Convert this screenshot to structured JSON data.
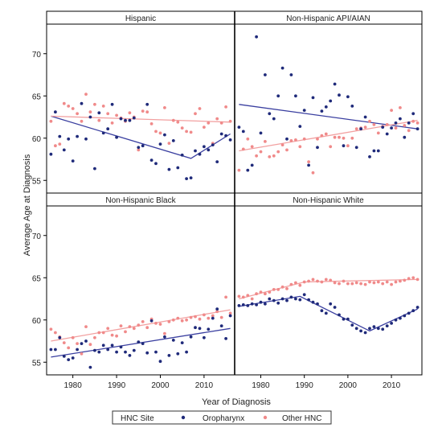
{
  "chart_data": {
    "type": "scatter",
    "xlabel": "Year of Diagnosis",
    "ylabel": "Average Age at Diagnosis",
    "xlim": [
      1974,
      2017
    ],
    "ylim": [
      53.5,
      73.5
    ],
    "xticks": [
      1980,
      1990,
      2000,
      2010
    ],
    "yticks": [
      55,
      60,
      65,
      70
    ],
    "legend": {
      "title": "HNC Site",
      "placement": "bottom",
      "entries": [
        {
          "name": "Oropharynx",
          "color": "#1f2a7a"
        },
        {
          "name": "Other HNC",
          "color": "#f08a8a"
        }
      ]
    },
    "colors": {
      "oropharynx": "#1f2a7a",
      "other": "#f08a8a",
      "oro_line": "#3a3fa0",
      "other_line": "#f2a0a0"
    },
    "panels": [
      {
        "title": "Hispanic",
        "series": [
          {
            "name": "Oropharynx",
            "x": [
              1975,
              1976,
              1977,
              1978,
              1979,
              1980,
              1981,
              1982,
              1983,
              1984,
              1985,
              1986,
              1987,
              1988,
              1989,
              1990,
              1991,
              1992,
              1993,
              1994,
              1995,
              1996,
              1997,
              1998,
              1999,
              2000,
              2001,
              2002,
              2003,
              2004,
              2005,
              2006,
              2007,
              2008,
              2009,
              2010,
              2011,
              2012,
              2013,
              2014,
              2015,
              2016
            ],
            "y": [
              58.1,
              63.1,
              60.2,
              58.6,
              59.9,
              57.3,
              60.2,
              64.1,
              59.9,
              62.5,
              56.4,
              63.0,
              60.6,
              61.1,
              64.0,
              60.1,
              62.3,
              62.1,
              62.1,
              62.4,
              58.9,
              59.1,
              64.0,
              57.4,
              57.0,
              59.3,
              60.4,
              56.3,
              59.7,
              56.5,
              58.0,
              55.2,
              55.3,
              58.5,
              58.1,
              59.0,
              58.6,
              59.2,
              57.2,
              60.5,
              60.3,
              59.8
            ]
          },
          {
            "name": "Other HNC",
            "x": [
              1975,
              1976,
              1977,
              1978,
              1979,
              1980,
              1981,
              1982,
              1983,
              1984,
              1985,
              1986,
              1987,
              1988,
              1989,
              1990,
              1991,
              1992,
              1993,
              1994,
              1995,
              1996,
              1997,
              1998,
              1999,
              2000,
              2001,
              2002,
              2003,
              2004,
              2005,
              2006,
              2007,
              2008,
              2009,
              2010,
              2011,
              2012,
              2013,
              2014,
              2015,
              2016
            ],
            "y": [
              62.0,
              59.1,
              59.3,
              64.1,
              63.8,
              63.5,
              62.9,
              62.0,
              65.2,
              63.1,
              64.0,
              62.1,
              63.8,
              62.9,
              61.8,
              62.7,
              62.4,
              62.0,
              63.0,
              62.5,
              58.6,
              63.2,
              63.1,
              61.7,
              60.8,
              60.6,
              63.6,
              59.4,
              62.1,
              61.9,
              61.2,
              60.8,
              60.7,
              62.9,
              63.5,
              61.3,
              61.8,
              59.4,
              62.3,
              61.8,
              63.7,
              62.0
            ]
          }
        ],
        "fits": [
          {
            "name": "Oropharynx",
            "x": [
              1975,
              2007,
              2016
            ],
            "y": [
              62.6,
              57.6,
              60.5
            ]
          },
          {
            "name": "Other HNC",
            "x": [
              1975,
              2016
            ],
            "y": [
              62.6,
              61.9
            ]
          }
        ]
      },
      {
        "title": "Non-Hispanic API/AIAN",
        "series": [
          {
            "name": "Oropharynx",
            "x": [
              1975,
              1976,
              1977,
              1978,
              1979,
              1980,
              1981,
              1982,
              1983,
              1984,
              1985,
              1986,
              1987,
              1988,
              1989,
              1990,
              1991,
              1992,
              1993,
              1994,
              1995,
              1996,
              1997,
              1998,
              1999,
              2000,
              2001,
              2002,
              2003,
              2004,
              2005,
              2006,
              2007,
              2008,
              2009,
              2010,
              2011,
              2012,
              2013,
              2014,
              2015,
              2016
            ],
            "y": [
              61.3,
              60.8,
              56.2,
              56.8,
              72.0,
              60.6,
              67.5,
              62.9,
              62.3,
              65.0,
              68.3,
              59.9,
              67.5,
              65.0,
              61.4,
              63.3,
              56.8,
              64.8,
              58.9,
              63.2,
              63.7,
              64.4,
              66.4,
              65.1,
              59.1,
              64.9,
              63.8,
              58.9,
              61.1,
              62.5,
              57.8,
              58.5,
              58.5,
              61.3,
              60.5,
              61.2,
              61.8,
              62.3,
              60.1,
              61.8,
              62.9,
              61.1
            ]
          },
          {
            "name": "Other HNC",
            "x": [
              1975,
              1976,
              1977,
              1978,
              1979,
              1980,
              1981,
              1982,
              1983,
              1984,
              1985,
              1986,
              1987,
              1988,
              1989,
              1990,
              1991,
              1992,
              1993,
              1994,
              1995,
              1996,
              1997,
              1998,
              1999,
              2000,
              2001,
              2002,
              2003,
              2004,
              2005,
              2006,
              2007,
              2008,
              2009,
              2010,
              2011,
              2012,
              2013,
              2014,
              2015,
              2016
            ],
            "y": [
              56.2,
              58.7,
              59.9,
              59.0,
              57.9,
              58.4,
              59.6,
              57.8,
              57.9,
              58.4,
              59.2,
              58.6,
              59.7,
              59.8,
              59.0,
              59.9,
              57.2,
              55.9,
              59.9,
              60.3,
              60.5,
              59.0,
              60.1,
              60.1,
              60.0,
              59.1,
              60.0,
              61.1,
              61.2,
              61.3,
              62.0,
              61.6,
              60.6,
              61.4,
              61.6,
              63.3,
              61.2,
              63.6,
              61.5,
              60.9,
              62.0,
              61.8
            ]
          }
        ],
        "fits": [
          {
            "name": "Oropharynx",
            "x": [
              1975,
              2016
            ],
            "y": [
              64.0,
              61.1
            ]
          },
          {
            "name": "Other HNC",
            "x": [
              1975,
              2016
            ],
            "y": [
              58.5,
              62.1
            ]
          }
        ]
      },
      {
        "title": "Non-Hispanic Black",
        "series": [
          {
            "name": "Oropharynx",
            "x": [
              1975,
              1976,
              1977,
              1978,
              1979,
              1980,
              1981,
              1982,
              1983,
              1984,
              1985,
              1986,
              1987,
              1988,
              1989,
              1990,
              1991,
              1992,
              1993,
              1994,
              1995,
              1996,
              1997,
              1998,
              1999,
              2000,
              2001,
              2002,
              2003,
              2004,
              2005,
              2006,
              2007,
              2008,
              2009,
              2010,
              2011,
              2012,
              2013,
              2014,
              2015,
              2016
            ],
            "y": [
              56.5,
              56.5,
              57.9,
              55.7,
              55.3,
              55.5,
              56.5,
              57.2,
              57.5,
              54.4,
              56.4,
              56.2,
              57.0,
              56.5,
              57.0,
              56.2,
              56.8,
              56.2,
              55.8,
              56.4,
              57.4,
              57.2,
              56.1,
              59.9,
              56.2,
              55.1,
              58.0,
              55.8,
              57.6,
              56.0,
              57.3,
              56.2,
              58.0,
              59.1,
              59.0,
              57.9,
              58.9,
              60.2,
              61.3,
              59.3,
              57.8,
              60.5
            ]
          },
          {
            "name": "Other HNC",
            "x": [
              1975,
              1976,
              1977,
              1978,
              1979,
              1980,
              1981,
              1982,
              1983,
              1984,
              1985,
              1986,
              1987,
              1988,
              1989,
              1990,
              1991,
              1992,
              1993,
              1994,
              1995,
              1996,
              1997,
              1998,
              1999,
              2000,
              2001,
              2002,
              2003,
              2004,
              2005,
              2006,
              2007,
              2008,
              2009,
              2010,
              2011,
              2012,
              2013,
              2014,
              2015,
              2016
            ],
            "y": [
              58.9,
              58.5,
              58.0,
              57.3,
              56.7,
              57.9,
              57.2,
              56.0,
              59.2,
              57.1,
              57.9,
              58.5,
              58.5,
              59.0,
              58.2,
              58.1,
              59.3,
              58.6,
              59.2,
              59.0,
              59.4,
              59.8,
              59.1,
              60.1,
              59.6,
              59.5,
              58.4,
              59.8,
              60.0,
              60.2,
              59.9,
              60.0,
              60.3,
              60.4,
              60.1,
              60.6,
              60.2,
              60.5,
              61.0,
              60.3,
              62.7,
              60.8
            ]
          }
        ],
        "fits": [
          {
            "name": "Oropharynx",
            "x": [
              1975,
              2016
            ],
            "y": [
              55.6,
              59.0
            ]
          },
          {
            "name": "Other HNC",
            "x": [
              1975,
              2016
            ],
            "y": [
              57.5,
              61.2
            ]
          }
        ]
      },
      {
        "title": "Non-Hispanic White",
        "series": [
          {
            "name": "Oropharynx",
            "x": [
              1975,
              1976,
              1977,
              1978,
              1979,
              1980,
              1981,
              1982,
              1983,
              1984,
              1985,
              1986,
              1987,
              1988,
              1989,
              1990,
              1991,
              1992,
              1993,
              1994,
              1995,
              1996,
              1997,
              1998,
              1999,
              2000,
              2001,
              2002,
              2003,
              2004,
              2005,
              2006,
              2007,
              2008,
              2009,
              2010,
              2011,
              2012,
              2013,
              2014,
              2015,
              2016
            ],
            "y": [
              61.7,
              61.8,
              61.7,
              61.9,
              61.8,
              62.1,
              61.9,
              62.5,
              62.3,
              62.0,
              62.5,
              62.3,
              62.7,
              62.5,
              62.4,
              63.0,
              62.4,
              62.1,
              61.9,
              61.1,
              60.8,
              61.9,
              61.5,
              60.6,
              60.1,
              60.1,
              59.4,
              59.0,
              58.7,
              58.5,
              59.0,
              59.2,
              59.0,
              58.9,
              59.3,
              59.6,
              60.0,
              60.2,
              60.5,
              60.8,
              61.1,
              61.5
            ]
          },
          {
            "name": "Other HNC",
            "x": [
              1975,
              1976,
              1977,
              1978,
              1979,
              1980,
              1981,
              1982,
              1983,
              1984,
              1985,
              1986,
              1987,
              1988,
              1989,
              1990,
              1991,
              1992,
              1993,
              1994,
              1995,
              1996,
              1997,
              1998,
              1999,
              2000,
              2001,
              2002,
              2003,
              2004,
              2005,
              2006,
              2007,
              2008,
              2009,
              2010,
              2011,
              2012,
              2013,
              2014,
              2015,
              2016
            ],
            "y": [
              62.8,
              62.7,
              62.9,
              62.5,
              63.1,
              63.3,
              63.1,
              63.3,
              63.6,
              63.6,
              63.9,
              63.7,
              64.2,
              64.4,
              64.1,
              64.5,
              64.6,
              64.8,
              64.6,
              64.5,
              64.8,
              64.7,
              64.4,
              64.3,
              64.6,
              64.3,
              64.3,
              64.4,
              64.3,
              64.2,
              64.5,
              64.4,
              64.5,
              64.3,
              64.5,
              64.2,
              64.5,
              64.6,
              64.7,
              64.9,
              65.0,
              64.8
            ]
          }
        ],
        "fits": [
          {
            "name": "Oropharynx",
            "x": [
              1975,
              1989,
              2005,
              2016
            ],
            "y": [
              61.6,
              62.8,
              58.7,
              61.3
            ]
          },
          {
            "name": "Other HNC",
            "x": [
              1975,
              1990,
              2016
            ],
            "y": [
              62.5,
              64.5,
              64.8
            ]
          }
        ]
      }
    ]
  }
}
